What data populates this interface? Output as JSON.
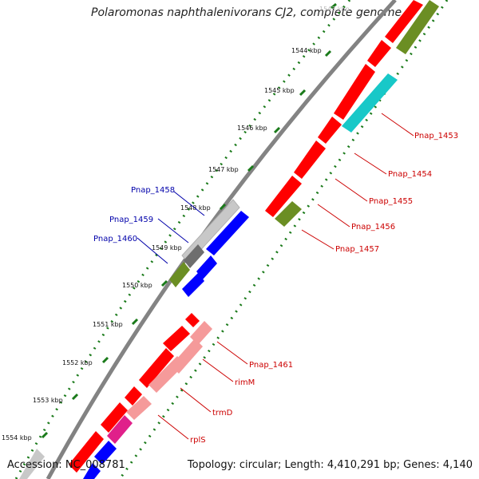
{
  "title": "Polaromonas naphthalenivorans CJ2, complete genome",
  "accession_label": "Accession: NC_008781",
  "summary_label": "Topology: circular; Length: 4,410,291 bp; Genes: 4,140",
  "ticks": [
    "1543 kbp",
    "1544 kbp",
    "1545 kbp",
    "1546 kbp",
    "1547 kbp",
    "1548 kbp",
    "1549 kbp",
    "1550 kbp",
    "1551 kbp",
    "1552 kbp",
    "1553 kbp",
    "1554 kbp"
  ],
  "gene_labels_right": [
    "Pnap_1453",
    "Pnap_1454",
    "Pnap_1455",
    "Pnap_1456",
    "Pnap_1457",
    "Pnap_1461",
    "rimM",
    "trmD",
    "rplS"
  ],
  "gene_labels_left": [
    "Pnap_1458",
    "Pnap_1459",
    "Pnap_1460"
  ],
  "colors": {
    "red": "#ff0000",
    "light_red": "#f59a9a",
    "olive": "#6b8e23",
    "cyan": "#18c8c8",
    "blue": "#0000ff",
    "gray": "#c8c8c8",
    "dark_gray": "#6e6e6e",
    "magenta": "#e0208a",
    "tick_green": "#1a7a1a",
    "label_red": "#cc0000",
    "label_blue": "#0000aa"
  }
}
